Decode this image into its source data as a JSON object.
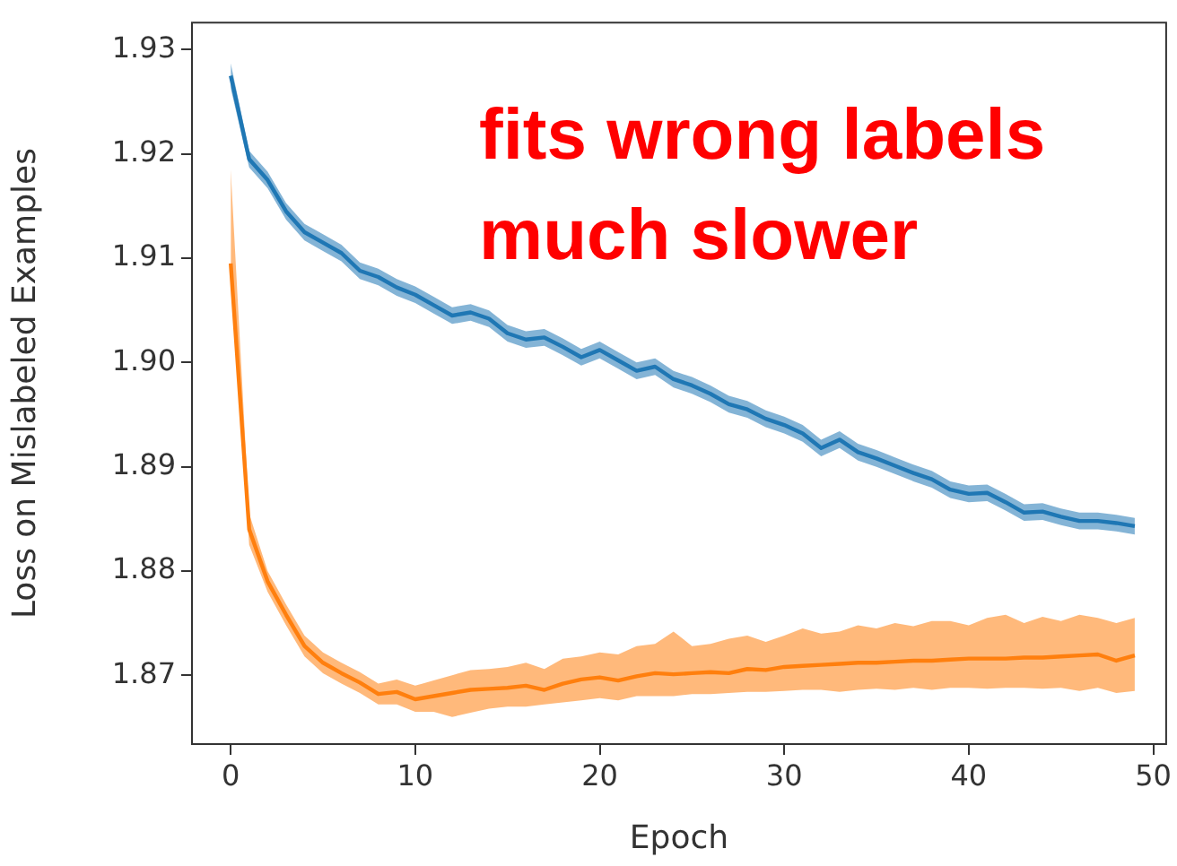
{
  "chart_data": {
    "type": "line",
    "xlabel": "Epoch",
    "ylabel": "Loss on Mislabeled Examples",
    "annotations": [
      "fits wrong labels\nmuch slower"
    ],
    "x": [
      0,
      1,
      2,
      3,
      4,
      5,
      6,
      7,
      8,
      9,
      10,
      11,
      12,
      13,
      14,
      15,
      16,
      17,
      18,
      19,
      20,
      21,
      22,
      23,
      24,
      25,
      26,
      27,
      28,
      29,
      30,
      31,
      32,
      33,
      34,
      35,
      36,
      37,
      38,
      39,
      40,
      41,
      42,
      43,
      44,
      45,
      46,
      47,
      48,
      49
    ],
    "xlim": [
      -2.1,
      50.7
    ],
    "xticks": [
      0,
      10,
      20,
      30,
      40,
      50
    ],
    "ylim": [
      1.8634,
      1.9326
    ],
    "yticks": [
      1.87,
      1.88,
      1.89,
      {
        "value": 1.9,
        "label": "1.90"
      },
      1.91,
      1.92,
      1.93
    ],
    "grid": false,
    "legend": false,
    "marker": "none",
    "line_style": "solid",
    "series": [
      {
        "color": "#1f77b4",
        "values": [
          1.9275,
          1.9195,
          1.9175,
          1.9145,
          1.9125,
          1.9115,
          1.9105,
          1.9088,
          1.9082,
          1.9072,
          1.9065,
          1.9055,
          1.9045,
          1.9048,
          1.9042,
          1.9028,
          1.9022,
          1.9024,
          1.9015,
          1.9005,
          1.9012,
          1.9002,
          1.8992,
          1.8996,
          1.8984,
          1.8978,
          1.897,
          1.896,
          1.8955,
          1.8946,
          1.894,
          1.8932,
          1.8918,
          1.8926,
          1.8914,
          1.8908,
          1.8901,
          1.8894,
          1.8888,
          1.8878,
          1.8874,
          1.8875,
          1.8866,
          1.8856,
          1.8857,
          1.8852,
          1.8848,
          1.8848,
          1.8846,
          1.8843
        ],
        "lower": [
          1.9263,
          1.9187,
          1.9167,
          1.9137,
          1.9117,
          1.9107,
          1.9097,
          1.908,
          1.9074,
          1.9064,
          1.9057,
          1.9047,
          1.9037,
          1.904,
          1.9034,
          1.902,
          1.9014,
          1.9016,
          1.9007,
          1.8997,
          1.9004,
          1.8994,
          1.8984,
          1.8988,
          1.8976,
          1.897,
          1.8962,
          1.8952,
          1.8947,
          1.8938,
          1.8932,
          1.8924,
          1.891,
          1.8918,
          1.8906,
          1.89,
          1.8893,
          1.8886,
          1.888,
          1.887,
          1.8866,
          1.8867,
          1.8858,
          1.8848,
          1.8849,
          1.8844,
          1.884,
          1.884,
          1.8838,
          1.8835
        ],
        "upper": [
          1.9287,
          1.9203,
          1.9183,
          1.9153,
          1.9133,
          1.9123,
          1.9113,
          1.9096,
          1.909,
          1.908,
          1.9073,
          1.9063,
          1.9053,
          1.9056,
          1.905,
          1.9036,
          1.903,
          1.9032,
          1.9023,
          1.9013,
          1.902,
          1.901,
          1.9,
          1.9004,
          1.8992,
          1.8986,
          1.8978,
          1.8968,
          1.8963,
          1.8954,
          1.8948,
          1.894,
          1.8926,
          1.8934,
          1.8922,
          1.8916,
          1.8909,
          1.8902,
          1.8896,
          1.8886,
          1.8882,
          1.8883,
          1.8874,
          1.8864,
          1.8865,
          1.886,
          1.8856,
          1.8856,
          1.8854,
          1.8851
        ]
      },
      {
        "color": "#ff7f0e",
        "values": [
          1.9095,
          1.884,
          1.879,
          1.8758,
          1.8728,
          1.8712,
          1.8702,
          1.8693,
          1.8682,
          1.8684,
          1.8677,
          1.868,
          1.8683,
          1.8686,
          1.8687,
          1.8688,
          1.869,
          1.8686,
          1.8692,
          1.8696,
          1.8698,
          1.8695,
          1.8699,
          1.8702,
          1.8701,
          1.8702,
          1.8703,
          1.8702,
          1.8706,
          1.8705,
          1.8708,
          1.8709,
          1.871,
          1.8711,
          1.8712,
          1.8712,
          1.8713,
          1.8714,
          1.8714,
          1.8715,
          1.8716,
          1.8716,
          1.8716,
          1.8717,
          1.8717,
          1.8718,
          1.8719,
          1.872,
          1.8714,
          1.8719
        ],
        "lower": [
          1.909,
          1.8825,
          1.878,
          1.8748,
          1.8718,
          1.8702,
          1.8692,
          1.8683,
          1.8672,
          1.8672,
          1.8665,
          1.8665,
          1.866,
          1.8664,
          1.8668,
          1.867,
          1.867,
          1.8672,
          1.8674,
          1.8676,
          1.8678,
          1.8676,
          1.868,
          1.868,
          1.868,
          1.8682,
          1.8682,
          1.8683,
          1.8684,
          1.8684,
          1.8685,
          1.8686,
          1.8686,
          1.8684,
          1.8686,
          1.8687,
          1.8686,
          1.8688,
          1.8686,
          1.8688,
          1.8688,
          1.8687,
          1.8688,
          1.8688,
          1.8687,
          1.8688,
          1.8685,
          1.8688,
          1.8683,
          1.8685
        ],
        "upper": [
          1.9185,
          1.8855,
          1.88,
          1.8768,
          1.8738,
          1.8722,
          1.8712,
          1.8703,
          1.8692,
          1.8696,
          1.869,
          1.8695,
          1.87,
          1.8705,
          1.8706,
          1.8708,
          1.8712,
          1.8706,
          1.8716,
          1.8718,
          1.8722,
          1.872,
          1.8728,
          1.873,
          1.8742,
          1.8728,
          1.873,
          1.8735,
          1.8738,
          1.8732,
          1.8738,
          1.8745,
          1.874,
          1.8742,
          1.8748,
          1.8745,
          1.875,
          1.8747,
          1.8752,
          1.8752,
          1.8748,
          1.8755,
          1.8758,
          1.875,
          1.8756,
          1.8752,
          1.8758,
          1.8755,
          1.875,
          1.8755
        ]
      }
    ]
  }
}
